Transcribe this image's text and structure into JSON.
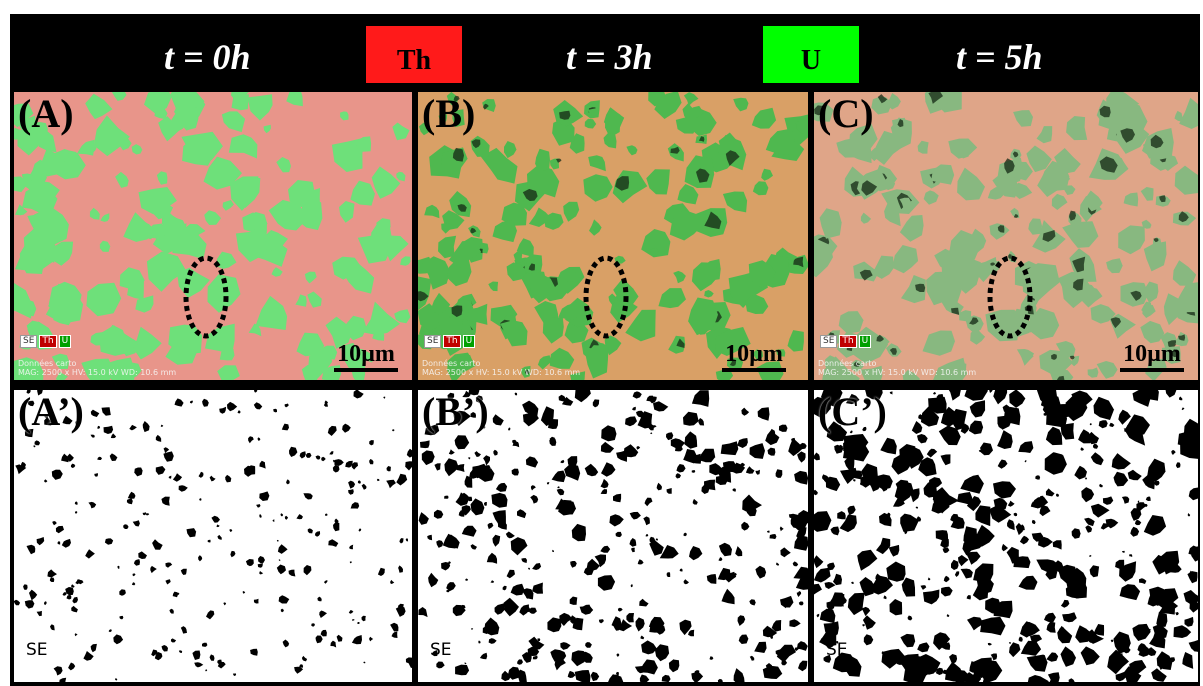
{
  "time_labels": [
    "t = 0h",
    "t = 3h",
    "t = 5h"
  ],
  "legend": {
    "th": {
      "label": "Th",
      "color": "#ff1a1a"
    },
    "u": {
      "label": "U",
      "color": "#00ff00"
    }
  },
  "panels_top": [
    {
      "label": "(A)",
      "scale_label": "10µm",
      "channels": [
        "SE",
        "Th",
        "U"
      ],
      "info_line1": "Données carto",
      "info_line2": "MAG: 2500 x  HV: 15.0 kV  WD: 10.6 mm",
      "base_color": "#e8958a",
      "phase_color": "#6ee07a",
      "dark_spots": 0
    },
    {
      "label": "(B)",
      "scale_label": "10µm",
      "channels": [
        "SE",
        "Th",
        "U"
      ],
      "info_line1": "Données carto",
      "info_line2": "MAG: 2500 x  HV: 15.0 kV  WD: 10.6 mm",
      "base_color": "#d9a066",
      "phase_color": "#4fb84f",
      "dark_spots": 0.5
    },
    {
      "label": "(C)",
      "scale_label": "10µm",
      "channels": [
        "SE",
        "Th",
        "U"
      ],
      "info_line1": "Données carto",
      "info_line2": "MAG: 2500 x  HV: 15.0 kV  WD: 10.6 mm",
      "base_color": "#dfa588",
      "phase_color": "#88b880",
      "dark_spots": 0.8
    }
  ],
  "panels_bottom": [
    {
      "label": "(A’)",
      "se_label": "SE",
      "black_fraction": 0.06
    },
    {
      "label": "(B’)",
      "se_label": "SE",
      "black_fraction": 0.15
    },
    {
      "label": "(C’)",
      "se_label": "SE",
      "black_fraction": 0.22
    }
  ],
  "colors": {
    "background": "#000000",
    "ellipse": "#000000"
  }
}
